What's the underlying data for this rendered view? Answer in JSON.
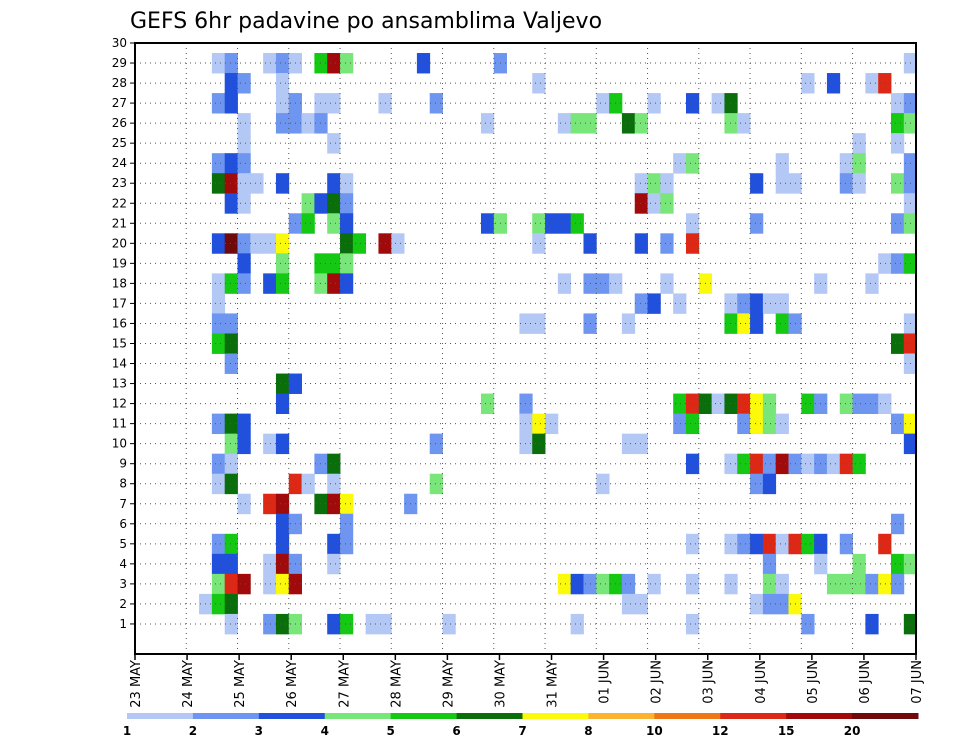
{
  "chart_data": {
    "type": "heatmap",
    "title": "GEFS 6hr padavine po ansamblima Valjevo",
    "xlabel": "",
    "ylabel": "",
    "x_tick_labels": [
      "23 MAY",
      "24 MAY",
      "25 MAY",
      "26 MAY",
      "27 MAY",
      "28 MAY",
      "29 MAY",
      "30 MAY",
      "31 MAY",
      "01 JUN",
      "02 JUN",
      "03 JUN",
      "04 JUN",
      "05 JUN",
      "06 JUN",
      "07 JUN"
    ],
    "y_tick_labels": [
      "1",
      "2",
      "3",
      "4",
      "5",
      "6",
      "7",
      "8",
      "9",
      "10",
      "11",
      "12",
      "13",
      "14",
      "15",
      "16",
      "17",
      "18",
      "19",
      "20",
      "21",
      "22",
      "23",
      "24",
      "25",
      "26",
      "27",
      "28",
      "29",
      "30"
    ],
    "ylim": [
      0.5,
      30.5
    ],
    "time_steps": 61,
    "members": 30,
    "grid": true,
    "legend": {
      "placement": "bottom",
      "levels": [
        1,
        2,
        3,
        4,
        5,
        6,
        7,
        8,
        10,
        12,
        15,
        20
      ],
      "labels": [
        "1",
        "2",
        "3",
        "4",
        "5",
        "6",
        "7",
        "8",
        "10",
        "12",
        "15",
        "20"
      ],
      "colors": [
        "#b4c8f5",
        "#6e96f0",
        "#2050dc",
        "#78e678",
        "#14c814",
        "#0a6e0a",
        "#fafa0a",
        "#fab432",
        "#f07814",
        "#dc2814",
        "#a00a0a",
        "#6e0a0a"
      ]
    },
    "note_values": "cells: [step_index, member, class_index] where class 0..11 maps to legend colors",
    "cells": [
      [
        6,
        29,
        0
      ],
      [
        7,
        29,
        1
      ],
      [
        10,
        29,
        0
      ],
      [
        11,
        29,
        1
      ],
      [
        12,
        29,
        0
      ],
      [
        14,
        29,
        4
      ],
      [
        15,
        29,
        10
      ],
      [
        16,
        29,
        3
      ],
      [
        22,
        29,
        2
      ],
      [
        28,
        29,
        1
      ],
      [
        60,
        29,
        0
      ],
      [
        7,
        28,
        2
      ],
      [
        8,
        28,
        1
      ],
      [
        11,
        28,
        0
      ],
      [
        31,
        28,
        0
      ],
      [
        52,
        28,
        0
      ],
      [
        54,
        28,
        2
      ],
      [
        57,
        28,
        0
      ],
      [
        58,
        28,
        9
      ],
      [
        6,
        27,
        1
      ],
      [
        7,
        27,
        2
      ],
      [
        11,
        27,
        0
      ],
      [
        12,
        27,
        1
      ],
      [
        14,
        27,
        0
      ],
      [
        15,
        27,
        0
      ],
      [
        19,
        27,
        0
      ],
      [
        23,
        27,
        1
      ],
      [
        36,
        27,
        0
      ],
      [
        37,
        27,
        4
      ],
      [
        40,
        27,
        0
      ],
      [
        43,
        27,
        2
      ],
      [
        45,
        27,
        0
      ],
      [
        46,
        27,
        5
      ],
      [
        59,
        27,
        0
      ],
      [
        60,
        27,
        1
      ],
      [
        8,
        26,
        0
      ],
      [
        11,
        26,
        1
      ],
      [
        12,
        26,
        1
      ],
      [
        13,
        26,
        0
      ],
      [
        14,
        26,
        1
      ],
      [
        27,
        26,
        0
      ],
      [
        33,
        26,
        0
      ],
      [
        34,
        26,
        3
      ],
      [
        35,
        26,
        3
      ],
      [
        38,
        26,
        5
      ],
      [
        39,
        26,
        3
      ],
      [
        46,
        26,
        3
      ],
      [
        47,
        26,
        0
      ],
      [
        59,
        26,
        4
      ],
      [
        60,
        26,
        3
      ],
      [
        8,
        25,
        0
      ],
      [
        15,
        25,
        0
      ],
      [
        56,
        25,
        0
      ],
      [
        59,
        25,
        0
      ],
      [
        6,
        24,
        1
      ],
      [
        7,
        24,
        2
      ],
      [
        8,
        24,
        1
      ],
      [
        42,
        24,
        0
      ],
      [
        43,
        24,
        3
      ],
      [
        50,
        24,
        0
      ],
      [
        55,
        24,
        0
      ],
      [
        56,
        24,
        3
      ],
      [
        60,
        24,
        1
      ],
      [
        6,
        23,
        5
      ],
      [
        7,
        23,
        10
      ],
      [
        8,
        23,
        0
      ],
      [
        9,
        23,
        0
      ],
      [
        11,
        23,
        2
      ],
      [
        15,
        23,
        2
      ],
      [
        16,
        23,
        0
      ],
      [
        39,
        23,
        0
      ],
      [
        40,
        23,
        3
      ],
      [
        41,
        23,
        0
      ],
      [
        48,
        23,
        2
      ],
      [
        50,
        23,
        0
      ],
      [
        51,
        23,
        0
      ],
      [
        55,
        23,
        1
      ],
      [
        56,
        23,
        0
      ],
      [
        59,
        23,
        3
      ],
      [
        60,
        23,
        1
      ],
      [
        7,
        22,
        2
      ],
      [
        8,
        22,
        0
      ],
      [
        13,
        22,
        3
      ],
      [
        14,
        22,
        2
      ],
      [
        15,
        22,
        5
      ],
      [
        16,
        22,
        1
      ],
      [
        39,
        22,
        10
      ],
      [
        40,
        22,
        0
      ],
      [
        41,
        22,
        3
      ],
      [
        60,
        22,
        0
      ],
      [
        12,
        21,
        1
      ],
      [
        13,
        21,
        4
      ],
      [
        15,
        21,
        3
      ],
      [
        16,
        21,
        2
      ],
      [
        27,
        21,
        2
      ],
      [
        28,
        21,
        3
      ],
      [
        31,
        21,
        3
      ],
      [
        32,
        21,
        2
      ],
      [
        33,
        21,
        2
      ],
      [
        34,
        21,
        4
      ],
      [
        43,
        21,
        0
      ],
      [
        48,
        21,
        1
      ],
      [
        59,
        21,
        1
      ],
      [
        60,
        21,
        3
      ],
      [
        6,
        20,
        2
      ],
      [
        7,
        20,
        11
      ],
      [
        8,
        20,
        1
      ],
      [
        9,
        20,
        0
      ],
      [
        10,
        20,
        0
      ],
      [
        11,
        20,
        6
      ],
      [
        16,
        20,
        5
      ],
      [
        17,
        20,
        4
      ],
      [
        19,
        20,
        10
      ],
      [
        20,
        20,
        0
      ],
      [
        31,
        20,
        0
      ],
      [
        35,
        20,
        2
      ],
      [
        39,
        20,
        2
      ],
      [
        41,
        20,
        1
      ],
      [
        43,
        20,
        9
      ],
      [
        8,
        19,
        2
      ],
      [
        11,
        19,
        3
      ],
      [
        14,
        19,
        4
      ],
      [
        15,
        19,
        4
      ],
      [
        16,
        19,
        3
      ],
      [
        58,
        19,
        0
      ],
      [
        59,
        19,
        1
      ],
      [
        60,
        19,
        4
      ],
      [
        6,
        18,
        0
      ],
      [
        7,
        18,
        4
      ],
      [
        8,
        18,
        1
      ],
      [
        10,
        18,
        2
      ],
      [
        11,
        18,
        4
      ],
      [
        14,
        18,
        3
      ],
      [
        15,
        18,
        10
      ],
      [
        16,
        18,
        2
      ],
      [
        33,
        18,
        0
      ],
      [
        35,
        18,
        1
      ],
      [
        36,
        18,
        1
      ],
      [
        37,
        18,
        0
      ],
      [
        41,
        18,
        0
      ],
      [
        44,
        18,
        6
      ],
      [
        53,
        18,
        0
      ],
      [
        57,
        18,
        0
      ],
      [
        6,
        17,
        0
      ],
      [
        39,
        17,
        1
      ],
      [
        40,
        17,
        2
      ],
      [
        42,
        17,
        0
      ],
      [
        46,
        17,
        0
      ],
      [
        47,
        17,
        1
      ],
      [
        48,
        17,
        2
      ],
      [
        49,
        17,
        0
      ],
      [
        50,
        17,
        0
      ],
      [
        6,
        16,
        1
      ],
      [
        7,
        16,
        1
      ],
      [
        30,
        16,
        0
      ],
      [
        31,
        16,
        0
      ],
      [
        35,
        16,
        1
      ],
      [
        38,
        16,
        0
      ],
      [
        46,
        16,
        4
      ],
      [
        47,
        16,
        6
      ],
      [
        48,
        16,
        2
      ],
      [
        50,
        16,
        4
      ],
      [
        51,
        16,
        1
      ],
      [
        60,
        16,
        0
      ],
      [
        6,
        15,
        4
      ],
      [
        7,
        15,
        5
      ],
      [
        59,
        15,
        5
      ],
      [
        60,
        15,
        9
      ],
      [
        7,
        14,
        1
      ],
      [
        60,
        14,
        0
      ],
      [
        11,
        13,
        5
      ],
      [
        12,
        13,
        2
      ],
      [
        11,
        12,
        2
      ],
      [
        27,
        12,
        3
      ],
      [
        30,
        12,
        1
      ],
      [
        42,
        12,
        4
      ],
      [
        43,
        12,
        9
      ],
      [
        44,
        12,
        5
      ],
      [
        45,
        12,
        0
      ],
      [
        46,
        12,
        5
      ],
      [
        47,
        12,
        9
      ],
      [
        48,
        12,
        6
      ],
      [
        49,
        12,
        3
      ],
      [
        52,
        12,
        4
      ],
      [
        53,
        12,
        1
      ],
      [
        55,
        12,
        3
      ],
      [
        56,
        12,
        1
      ],
      [
        57,
        12,
        1
      ],
      [
        58,
        12,
        0
      ],
      [
        6,
        11,
        1
      ],
      [
        7,
        11,
        5
      ],
      [
        8,
        11,
        2
      ],
      [
        30,
        11,
        0
      ],
      [
        31,
        11,
        6
      ],
      [
        32,
        11,
        0
      ],
      [
        42,
        11,
        1
      ],
      [
        43,
        11,
        4
      ],
      [
        47,
        11,
        1
      ],
      [
        48,
        11,
        6
      ],
      [
        49,
        11,
        3
      ],
      [
        50,
        11,
        0
      ],
      [
        59,
        11,
        1
      ],
      [
        60,
        11,
        6
      ],
      [
        7,
        10,
        3
      ],
      [
        8,
        10,
        2
      ],
      [
        10,
        10,
        0
      ],
      [
        11,
        10,
        2
      ],
      [
        23,
        10,
        1
      ],
      [
        30,
        10,
        0
      ],
      [
        31,
        10,
        5
      ],
      [
        38,
        10,
        0
      ],
      [
        39,
        10,
        0
      ],
      [
        60,
        10,
        2
      ],
      [
        6,
        9,
        1
      ],
      [
        7,
        9,
        0
      ],
      [
        14,
        9,
        1
      ],
      [
        15,
        9,
        5
      ],
      [
        43,
        9,
        2
      ],
      [
        46,
        9,
        0
      ],
      [
        47,
        9,
        4
      ],
      [
        48,
        9,
        9
      ],
      [
        49,
        9,
        1
      ],
      [
        50,
        9,
        10
      ],
      [
        51,
        9,
        1
      ],
      [
        52,
        9,
        0
      ],
      [
        53,
        9,
        1
      ],
      [
        54,
        9,
        0
      ],
      [
        55,
        9,
        9
      ],
      [
        56,
        9,
        4
      ],
      [
        6,
        8,
        0
      ],
      [
        7,
        8,
        5
      ],
      [
        12,
        8,
        9
      ],
      [
        13,
        8,
        0
      ],
      [
        15,
        8,
        0
      ],
      [
        23,
        8,
        3
      ],
      [
        36,
        8,
        0
      ],
      [
        48,
        8,
        1
      ],
      [
        49,
        8,
        2
      ],
      [
        8,
        7,
        0
      ],
      [
        10,
        7,
        9
      ],
      [
        11,
        7,
        10
      ],
      [
        14,
        7,
        5
      ],
      [
        15,
        7,
        10
      ],
      [
        16,
        7,
        6
      ],
      [
        21,
        7,
        1
      ],
      [
        11,
        6,
        2
      ],
      [
        12,
        6,
        1
      ],
      [
        16,
        6,
        1
      ],
      [
        59,
        6,
        1
      ],
      [
        6,
        5,
        1
      ],
      [
        7,
        5,
        4
      ],
      [
        11,
        5,
        2
      ],
      [
        15,
        5,
        2
      ],
      [
        16,
        5,
        1
      ],
      [
        43,
        5,
        0
      ],
      [
        46,
        5,
        0
      ],
      [
        47,
        5,
        1
      ],
      [
        48,
        5,
        2
      ],
      [
        49,
        5,
        9
      ],
      [
        50,
        5,
        0
      ],
      [
        51,
        5,
        9
      ],
      [
        52,
        5,
        4
      ],
      [
        53,
        5,
        2
      ],
      [
        55,
        5,
        1
      ],
      [
        58,
        5,
        9
      ],
      [
        6,
        4,
        2
      ],
      [
        7,
        4,
        2
      ],
      [
        10,
        4,
        0
      ],
      [
        11,
        4,
        10
      ],
      [
        12,
        4,
        1
      ],
      [
        15,
        4,
        0
      ],
      [
        49,
        4,
        1
      ],
      [
        53,
        4,
        0
      ],
      [
        56,
        4,
        3
      ],
      [
        59,
        4,
        4
      ],
      [
        60,
        4,
        3
      ],
      [
        6,
        3,
        3
      ],
      [
        7,
        3,
        9
      ],
      [
        8,
        3,
        10
      ],
      [
        10,
        3,
        0
      ],
      [
        11,
        3,
        6
      ],
      [
        12,
        3,
        10
      ],
      [
        33,
        3,
        6
      ],
      [
        34,
        3,
        2
      ],
      [
        35,
        3,
        1
      ],
      [
        36,
        3,
        3
      ],
      [
        37,
        3,
        4
      ],
      [
        38,
        3,
        1
      ],
      [
        40,
        3,
        0
      ],
      [
        43,
        3,
        0
      ],
      [
        46,
        3,
        0
      ],
      [
        49,
        3,
        3
      ],
      [
        50,
        3,
        0
      ],
      [
        54,
        3,
        3
      ],
      [
        55,
        3,
        3
      ],
      [
        56,
        3,
        3
      ],
      [
        57,
        3,
        1
      ],
      [
        58,
        3,
        6
      ],
      [
        59,
        3,
        1
      ],
      [
        5,
        2,
        0
      ],
      [
        6,
        2,
        4
      ],
      [
        7,
        2,
        5
      ],
      [
        38,
        2,
        0
      ],
      [
        39,
        2,
        0
      ],
      [
        48,
        2,
        0
      ],
      [
        49,
        2,
        1
      ],
      [
        50,
        2,
        1
      ],
      [
        51,
        2,
        6
      ],
      [
        7,
        1,
        0
      ],
      [
        10,
        1,
        1
      ],
      [
        11,
        1,
        5
      ],
      [
        12,
        1,
        3
      ],
      [
        15,
        1,
        2
      ],
      [
        16,
        1,
        4
      ],
      [
        18,
        1,
        0
      ],
      [
        19,
        1,
        0
      ],
      [
        24,
        1,
        0
      ],
      [
        34,
        1,
        0
      ],
      [
        43,
        1,
        0
      ],
      [
        52,
        1,
        1
      ],
      [
        57,
        1,
        2
      ],
      [
        60,
        1,
        5
      ]
    ]
  }
}
